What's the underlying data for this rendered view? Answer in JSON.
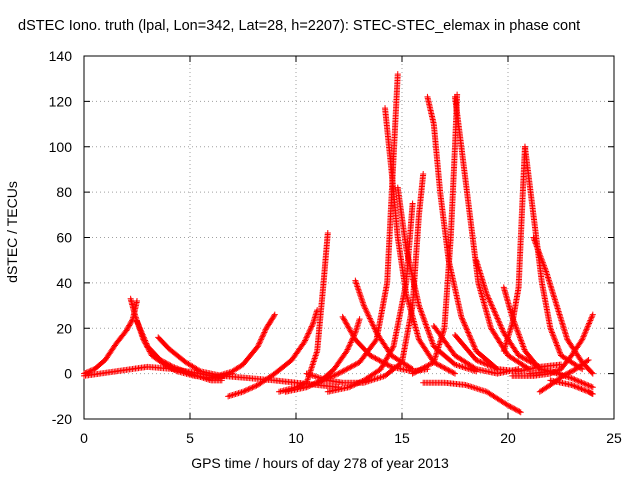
{
  "chart_data": {
    "type": "scatter",
    "title": "dSTEC Iono. truth (lpal, Lon=342, Lat=28, h=2207): STEC-STEC_elemax in phase cont",
    "xlabel": "GPS time / hours of day 278 of year 2013",
    "ylabel": "dSTEC  / TECUs",
    "xlim": [
      0,
      25
    ],
    "ylim": [
      -20,
      140
    ],
    "xticks": [
      "0",
      "5",
      "10",
      "15",
      "20",
      "25"
    ],
    "yticks": [
      "-20",
      "0",
      "20",
      "40",
      "60",
      "80",
      "100",
      "120",
      "140"
    ],
    "grid": true,
    "marker": "+",
    "color": "#ff0000",
    "series": [
      {
        "points": [
          [
            0.0,
            0
          ],
          [
            0.5,
            2
          ],
          [
            1.0,
            6
          ],
          [
            1.5,
            13
          ],
          [
            2.0,
            19
          ],
          [
            2.3,
            24
          ],
          [
            2.5,
            32
          ]
        ]
      },
      {
        "points": [
          [
            2.2,
            33
          ],
          [
            2.4,
            26
          ],
          [
            2.8,
            15
          ],
          [
            3.2,
            8
          ],
          [
            3.8,
            4
          ],
          [
            4.4,
            1
          ],
          [
            5.2,
            -1
          ],
          [
            6.0,
            -2
          ],
          [
            6.6,
            -1
          ]
        ]
      },
      {
        "points": [
          [
            2.5,
            23
          ],
          [
            3.0,
            12
          ],
          [
            3.6,
            6
          ],
          [
            4.2,
            3
          ],
          [
            5.0,
            0
          ],
          [
            6.0,
            -3
          ],
          [
            6.5,
            -3
          ]
        ]
      },
      {
        "points": [
          [
            0.0,
            -1
          ],
          [
            1.5,
            1
          ],
          [
            3.0,
            3
          ],
          [
            4.2,
            2
          ],
          [
            5.5,
            0
          ],
          [
            6.5,
            -2
          ]
        ]
      },
      {
        "points": [
          [
            3.5,
            16
          ],
          [
            4.0,
            11
          ],
          [
            4.8,
            5
          ],
          [
            5.5,
            1
          ],
          [
            6.5,
            -1
          ],
          [
            7.0,
            0
          ]
        ]
      },
      {
        "points": [
          [
            6.0,
            -2
          ],
          [
            7.0,
            1
          ],
          [
            7.5,
            4
          ],
          [
            8.2,
            12
          ],
          [
            8.6,
            20
          ],
          [
            9.0,
            26
          ]
        ]
      },
      {
        "points": [
          [
            6.8,
            -10
          ],
          [
            7.5,
            -8
          ],
          [
            8.2,
            -5
          ],
          [
            9.0,
            0
          ],
          [
            9.8,
            6
          ],
          [
            10.4,
            14
          ],
          [
            10.8,
            22
          ],
          [
            11.0,
            28
          ]
        ]
      },
      {
        "points": [
          [
            6.5,
            -1
          ],
          [
            7.8,
            -2
          ],
          [
            9.0,
            -3
          ],
          [
            10.0,
            -4
          ],
          [
            11.0,
            -5
          ],
          [
            12.0,
            -6
          ]
        ]
      },
      {
        "points": [
          [
            9.2,
            -8
          ],
          [
            10.0,
            -6
          ],
          [
            10.5,
            -4
          ],
          [
            11.0,
            10
          ],
          [
            11.3,
            40
          ],
          [
            11.5,
            62
          ]
        ]
      },
      {
        "points": [
          [
            9.5,
            -8
          ],
          [
            10.5,
            -6
          ],
          [
            11.2,
            -3
          ],
          [
            11.8,
            2
          ],
          [
            12.4,
            10
          ],
          [
            12.8,
            18
          ],
          [
            13.0,
            24
          ]
        ]
      },
      {
        "points": [
          [
            11.0,
            -4
          ],
          [
            11.5,
            -2
          ],
          [
            12.0,
            0
          ],
          [
            13.0,
            5
          ],
          [
            13.8,
            15
          ],
          [
            14.3,
            40
          ],
          [
            14.6,
            95
          ],
          [
            14.8,
            132
          ]
        ]
      },
      {
        "points": [
          [
            11.5,
            -8
          ],
          [
            12.5,
            -6
          ],
          [
            13.2,
            -3
          ],
          [
            14.0,
            2
          ],
          [
            14.6,
            12
          ],
          [
            15.2,
            40
          ],
          [
            15.5,
            75
          ]
        ]
      },
      {
        "points": [
          [
            10.5,
            0
          ],
          [
            11.5,
            -3
          ],
          [
            12.2,
            -4
          ],
          [
            13.2,
            -4
          ],
          [
            14.2,
            -1
          ],
          [
            15.0,
            5
          ],
          [
            15.5,
            30
          ],
          [
            15.8,
            70
          ],
          [
            16.0,
            88
          ]
        ]
      },
      {
        "points": [
          [
            12.2,
            25
          ],
          [
            12.8,
            15
          ],
          [
            13.5,
            8
          ],
          [
            14.5,
            3
          ],
          [
            15.5,
            1
          ],
          [
            16.2,
            2
          ]
        ]
      },
      {
        "points": [
          [
            12.8,
            41
          ],
          [
            13.2,
            30
          ],
          [
            13.8,
            18
          ],
          [
            14.5,
            8
          ],
          [
            15.5,
            2
          ]
        ]
      },
      {
        "points": [
          [
            14.2,
            117
          ],
          [
            14.5,
            90
          ],
          [
            14.8,
            60
          ],
          [
            15.2,
            35
          ],
          [
            15.8,
            15
          ],
          [
            16.5,
            5
          ],
          [
            17.5,
            0
          ]
        ]
      },
      {
        "points": [
          [
            14.8,
            82
          ],
          [
            15.2,
            55
          ],
          [
            15.8,
            30
          ],
          [
            16.5,
            12
          ],
          [
            17.5,
            4
          ],
          [
            18.5,
            1
          ]
        ]
      },
      {
        "points": [
          [
            16.2,
            122
          ],
          [
            16.5,
            110
          ],
          [
            16.8,
            80
          ],
          [
            17.2,
            50
          ],
          [
            17.8,
            25
          ],
          [
            18.5,
            10
          ],
          [
            19.5,
            2
          ]
        ]
      },
      {
        "points": [
          [
            15.5,
            0
          ],
          [
            16.5,
            5
          ],
          [
            17.0,
            20
          ],
          [
            17.3,
            60
          ],
          [
            17.5,
            100
          ],
          [
            17.6,
            123
          ]
        ]
      },
      {
        "points": [
          [
            17.5,
            122
          ],
          [
            17.8,
            100
          ],
          [
            18.2,
            70
          ],
          [
            18.6,
            40
          ],
          [
            19.2,
            20
          ],
          [
            20.0,
            8
          ],
          [
            21.0,
            2
          ]
        ]
      },
      {
        "points": [
          [
            16.5,
            21
          ],
          [
            17.5,
            8
          ],
          [
            18.5,
            2
          ],
          [
            19.5,
            0
          ],
          [
            20.5,
            2
          ]
        ]
      },
      {
        "points": [
          [
            17.5,
            17
          ],
          [
            18.5,
            6
          ],
          [
            19.5,
            2
          ],
          [
            20.5,
            1
          ],
          [
            21.5,
            3
          ]
        ]
      },
      {
        "points": [
          [
            18.5,
            50
          ],
          [
            19.0,
            35
          ],
          [
            19.8,
            18
          ],
          [
            20.5,
            8
          ],
          [
            21.5,
            3
          ],
          [
            22.5,
            4
          ]
        ]
      },
      {
        "points": [
          [
            16.0,
            -4
          ],
          [
            17.0,
            -4
          ],
          [
            18.0,
            -5
          ],
          [
            19.0,
            -8
          ],
          [
            20.0,
            -14
          ],
          [
            20.6,
            -17
          ]
        ]
      },
      {
        "points": [
          [
            19.8,
            10
          ],
          [
            20.2,
            22
          ],
          [
            20.5,
            38
          ],
          [
            20.7,
            80
          ],
          [
            20.8,
            100
          ]
        ]
      },
      {
        "points": [
          [
            20.8,
            100
          ],
          [
            21.2,
            70
          ],
          [
            21.6,
            40
          ],
          [
            22.0,
            20
          ],
          [
            22.5,
            8
          ],
          [
            23.5,
            2
          ]
        ]
      },
      {
        "points": [
          [
            19.8,
            38
          ],
          [
            20.2,
            25
          ],
          [
            20.8,
            10
          ],
          [
            21.5,
            2
          ],
          [
            22.5,
            0
          ]
        ]
      },
      {
        "points": [
          [
            20.2,
            -1
          ],
          [
            21.2,
            -1
          ],
          [
            22.0,
            0
          ],
          [
            22.5,
            2
          ],
          [
            23.0,
            8
          ],
          [
            23.5,
            15
          ],
          [
            24.0,
            26
          ]
        ]
      },
      {
        "points": [
          [
            21.2,
            60
          ],
          [
            21.8,
            45
          ],
          [
            22.3,
            30
          ],
          [
            22.8,
            15
          ],
          [
            23.5,
            5
          ],
          [
            24.0,
            0
          ]
        ]
      },
      {
        "points": [
          [
            21.5,
            -8
          ],
          [
            22.0,
            -5
          ],
          [
            22.6,
            -1
          ],
          [
            23.2,
            2
          ],
          [
            23.8,
            6
          ]
        ]
      },
      {
        "points": [
          [
            22.0,
            -3
          ],
          [
            23.0,
            -5
          ],
          [
            23.8,
            -8
          ],
          [
            24.0,
            -9
          ]
        ]
      },
      {
        "points": [
          [
            21.0,
            0
          ],
          [
            22.0,
            1
          ],
          [
            23.0,
            -2
          ],
          [
            24.0,
            -6
          ]
        ]
      }
    ]
  }
}
